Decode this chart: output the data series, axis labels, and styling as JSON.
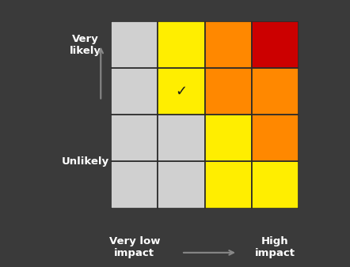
{
  "background_color": "#3a3a3a",
  "grid_colors": [
    [
      "#d0d0d0",
      "#d0d0d0",
      "#ffee00",
      "#ffee00"
    ],
    [
      "#d0d0d0",
      "#d0d0d0",
      "#ffee00",
      "#ff8800"
    ],
    [
      "#d0d0d0",
      "#ffee00",
      "#ff8800",
      "#ff8800"
    ],
    [
      "#d0d0d0",
      "#ffee00",
      "#ff8800",
      "#cc0000"
    ]
  ],
  "checkmark_row": 2,
  "checkmark_col": 1,
  "ylabel_top": "Very\nlikely",
  "ylabel_bottom": "Unlikely",
  "xlabel_left": "Very low\nimpact",
  "xlabel_right": "High\nimpact",
  "arrow_color": "#888888",
  "label_color": "#ffffff",
  "grid_line_color": "#2a2a2a",
  "font_size_labels": 9.5,
  "font_size_check": 13
}
